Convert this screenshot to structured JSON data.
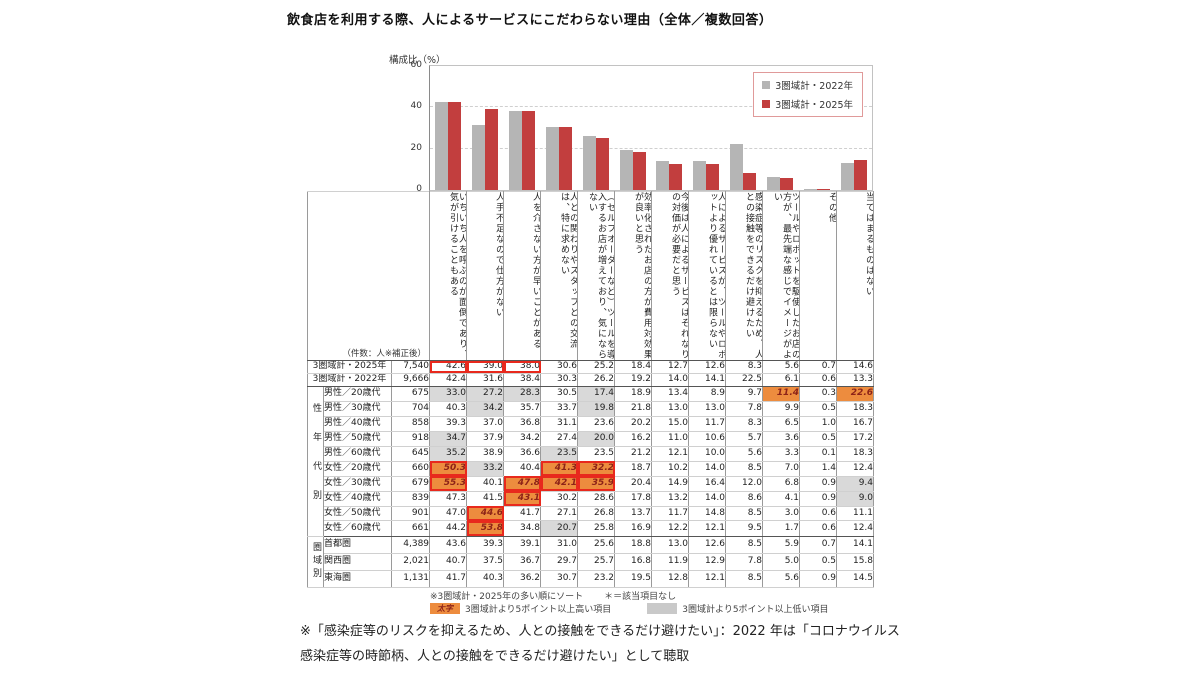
{
  "title": "飲食店を利用する際、人によるサービスにこだわらない理由（全体／複数回答）",
  "colors": {
    "bar_2022": "#B5B5B5",
    "bar_2025": "#C23E3E",
    "highlight_high": "#ED8C3E",
    "highlight_low": "#D9D9D9",
    "box_border": "#E8291D"
  },
  "chart_data": {
    "type": "bar",
    "title": "飲食店を利用する際、人によるサービスにこだわらない理由（全体／複数回答）",
    "ylabel": "構成比（%）",
    "ylim": [
      0,
      60
    ],
    "yticks": [
      60,
      40,
      20,
      0
    ],
    "grid": "dashed horizontal",
    "legend_position": "top-right",
    "categories": [
      "いちいち人を呼ぶのが面倒であり、気が引けることもある",
      "人手不足なので仕方がない",
      "人を介さない方が早いことがある",
      "人との関わりやスタッフとの交流は、特に求めない",
      "（セルフオーダーなど）ツールを導入するお店が増えており、気にならない",
      "効率化されたお店の方が費用対効果が良いと思う",
      "今後は人によるサービスはそれなりの対価が必要だと思う",
      "人によるサービスが、ツールやロボットより優れているとは限らない",
      "感染症等のリスクを抑えるため、人との接触をできるだけ避けたい",
      "ツールやロボットを駆使したお店の方が、最先端な感じでイメージがよい",
      "その他",
      "当てはまるものはない"
    ],
    "series": [
      {
        "name": "3圏域計・2022年",
        "color": "#B5B5B5",
        "values": [
          42.4,
          31.6,
          38.4,
          30.3,
          26.2,
          19.2,
          14.0,
          14.1,
          22.5,
          6.1,
          0.6,
          13.3
        ]
      },
      {
        "name": "3圏域計・2025年",
        "color": "#C23E3E",
        "values": [
          42.6,
          39.0,
          38.0,
          30.6,
          25.2,
          18.4,
          12.7,
          12.6,
          8.3,
          5.6,
          0.7,
          14.6
        ]
      }
    ]
  },
  "table": {
    "corner_label": "（件数：人※補正後）",
    "columns": [
      "いちいち人を呼ぶのが面倒であり、気が引けることもある",
      "人手不足なので仕方がない",
      "人を介さない方が早いことがある",
      "人との関わりやスタッフとの交流は、特に求めない",
      "（セルフオーダーなど）ツールを導入するお店が増えており、気にならない",
      "効率化されたお店の方が費用対効果が良いと思う",
      "今後は人によるサービスはそれなりの対価が必要だと思う",
      "人によるサービスが、ツールやロボットより優れているとは限らない",
      "感染症等のリスクを抑えるため、人との接触をできるだけ避けたい",
      "ツールやロボットを駆使したお店の方が、最先端な感じでイメージがよい",
      "その他",
      "当てはまるものはない"
    ],
    "rows": [
      {
        "label": "3圏域計・2025年",
        "count": "7,540",
        "total": true,
        "values": [
          "42.6",
          "39.0",
          "38.0",
          "30.6",
          "25.2",
          "18.4",
          "12.7",
          "12.6",
          "8.3",
          "5.6",
          "0.7",
          "14.6"
        ],
        "marks": [
          "r",
          "r",
          "r",
          "",
          "",
          "",
          "",
          "",
          "",
          "",
          "",
          ""
        ]
      },
      {
        "label": "3圏域計・2022年",
        "count": "9,666",
        "total": true,
        "section_end": true,
        "values": [
          "42.4",
          "31.6",
          "38.4",
          "30.3",
          "26.2",
          "19.2",
          "14.0",
          "14.1",
          "22.5",
          "6.1",
          "0.6",
          "13.3"
        ],
        "marks": [
          "",
          "",
          "",
          "",
          "",
          "",
          "",
          "",
          "",
          "",
          "",
          ""
        ]
      },
      {
        "group": "性年代別",
        "group_display": "性年代別",
        "group_span": 10,
        "label": "男性／20歳代",
        "count": "675",
        "values": [
          "33.0",
          "27.2",
          "28.3",
          "30.5",
          "17.4",
          "18.9",
          "13.4",
          "8.9",
          "9.7",
          "11.4",
          "0.3",
          "22.6"
        ],
        "marks": [
          "g",
          "g",
          "g",
          "",
          "g",
          "",
          "",
          "",
          "",
          "o",
          "",
          "o"
        ]
      },
      {
        "label": "男性／30歳代",
        "count": "704",
        "values": [
          "40.3",
          "34.2",
          "35.7",
          "33.7",
          "19.8",
          "21.8",
          "13.0",
          "13.0",
          "7.8",
          "9.9",
          "0.5",
          "18.3"
        ],
        "marks": [
          "",
          "g",
          "",
          "",
          "g",
          "",
          "",
          "",
          "",
          "",
          "",
          ""
        ]
      },
      {
        "label": "男性／40歳代",
        "count": "858",
        "values": [
          "39.3",
          "37.0",
          "36.8",
          "31.1",
          "23.6",
          "20.2",
          "15.0",
          "11.7",
          "8.3",
          "6.5",
          "1.0",
          "16.7"
        ],
        "marks": [
          "",
          "",
          "",
          "",
          "",
          "",
          "",
          "",
          "",
          "",
          "",
          ""
        ]
      },
      {
        "label": "男性／50歳代",
        "count": "918",
        "values": [
          "34.7",
          "37.9",
          "34.2",
          "27.4",
          "20.0",
          "16.2",
          "11.0",
          "10.6",
          "5.7",
          "3.6",
          "0.5",
          "17.2"
        ],
        "marks": [
          "g",
          "",
          "",
          "",
          "g",
          "",
          "",
          "",
          "",
          "",
          "",
          ""
        ]
      },
      {
        "label": "男性／60歳代",
        "count": "645",
        "values": [
          "35.2",
          "38.9",
          "36.6",
          "23.5",
          "23.5",
          "21.2",
          "12.1",
          "10.0",
          "5.6",
          "3.3",
          "0.1",
          "18.3"
        ],
        "marks": [
          "g",
          "",
          "",
          "g",
          "",
          "",
          "",
          "",
          "",
          "",
          "",
          ""
        ]
      },
      {
        "label": "女性／20歳代",
        "count": "660",
        "values": [
          "50.3",
          "33.2",
          "40.4",
          "41.3",
          "32.2",
          "18.7",
          "10.2",
          "14.0",
          "8.5",
          "7.0",
          "1.4",
          "12.4"
        ],
        "marks": [
          "or",
          "g",
          "",
          "or",
          "or",
          "",
          "",
          "",
          "",
          "",
          "",
          ""
        ]
      },
      {
        "label": "女性／30歳代",
        "count": "679",
        "values": [
          "55.3",
          "40.1",
          "47.8",
          "42.1",
          "35.9",
          "20.4",
          "14.9",
          "16.4",
          "12.0",
          "6.8",
          "0.9",
          "9.4"
        ],
        "marks": [
          "or",
          "",
          "or",
          "or",
          "or",
          "",
          "",
          "",
          "",
          "",
          "",
          "g"
        ]
      },
      {
        "label": "女性／40歳代",
        "count": "839",
        "values": [
          "47.3",
          "41.5",
          "43.1",
          "30.2",
          "28.6",
          "17.8",
          "13.2",
          "14.0",
          "8.6",
          "4.1",
          "0.9",
          "9.0"
        ],
        "marks": [
          "",
          "",
          "or",
          "",
          "",
          "",
          "",
          "",
          "",
          "",
          "",
          "g"
        ]
      },
      {
        "label": "女性／50歳代",
        "count": "901",
        "values": [
          "47.0",
          "44.6",
          "41.7",
          "27.1",
          "26.8",
          "13.7",
          "11.7",
          "14.8",
          "8.5",
          "3.0",
          "0.6",
          "11.1"
        ],
        "marks": [
          "",
          "or",
          "",
          "",
          "",
          "",
          "",
          "",
          "",
          "",
          "",
          ""
        ]
      },
      {
        "label": "女性／60歳代",
        "count": "661",
        "section_end": true,
        "values": [
          "44.2",
          "53.8",
          "34.8",
          "20.7",
          "25.8",
          "16.9",
          "12.2",
          "12.1",
          "9.5",
          "1.7",
          "0.6",
          "12.4"
        ],
        "marks": [
          "",
          "or",
          "",
          "g",
          "",
          "",
          "",
          "",
          "",
          "",
          "",
          ""
        ]
      },
      {
        "group": "圏域別",
        "group_display": "圏域別",
        "group_span": 3,
        "label": "首都圏",
        "count": "4,389",
        "values": [
          "43.6",
          "39.3",
          "39.1",
          "31.0",
          "25.6",
          "18.8",
          "13.0",
          "12.6",
          "8.5",
          "5.9",
          "0.7",
          "14.1"
        ],
        "marks": [
          "",
          "",
          "",
          "",
          "",
          "",
          "",
          "",
          "",
          "",
          "",
          ""
        ]
      },
      {
        "label": "関西圏",
        "count": "2,021",
        "values": [
          "40.7",
          "37.5",
          "36.7",
          "29.7",
          "25.7",
          "16.8",
          "11.9",
          "12.9",
          "7.8",
          "5.0",
          "0.5",
          "15.8"
        ],
        "marks": [
          "",
          "",
          "",
          "",
          "",
          "",
          "",
          "",
          "",
          "",
          "",
          ""
        ]
      },
      {
        "label": "東海圏",
        "count": "1,131",
        "values": [
          "41.7",
          "40.3",
          "36.2",
          "30.7",
          "23.2",
          "19.5",
          "12.8",
          "12.1",
          "8.5",
          "5.6",
          "0.9",
          "14.5"
        ],
        "marks": [
          "",
          "",
          "",
          "",
          "",
          "",
          "",
          "",
          "",
          "",
          "",
          ""
        ]
      }
    ]
  },
  "footnotes": {
    "sort_note": "※3圏域計・2025年の多い順にソート",
    "na_note": "＊＝該当項目なし",
    "legend_high_sample": "太字",
    "legend_high_label": "3圏域計より5ポイント以上高い項目",
    "legend_low_label": "3圏域計より5ポイント以上低い項目",
    "bottom_note": "※「感染症等のリスクを抑えるため、人との接触をできるだけ避けたい」：2022 年は「コロナウイルス感染症等の時節柄、人との接触をできるだけ避けたい」として聴取"
  }
}
